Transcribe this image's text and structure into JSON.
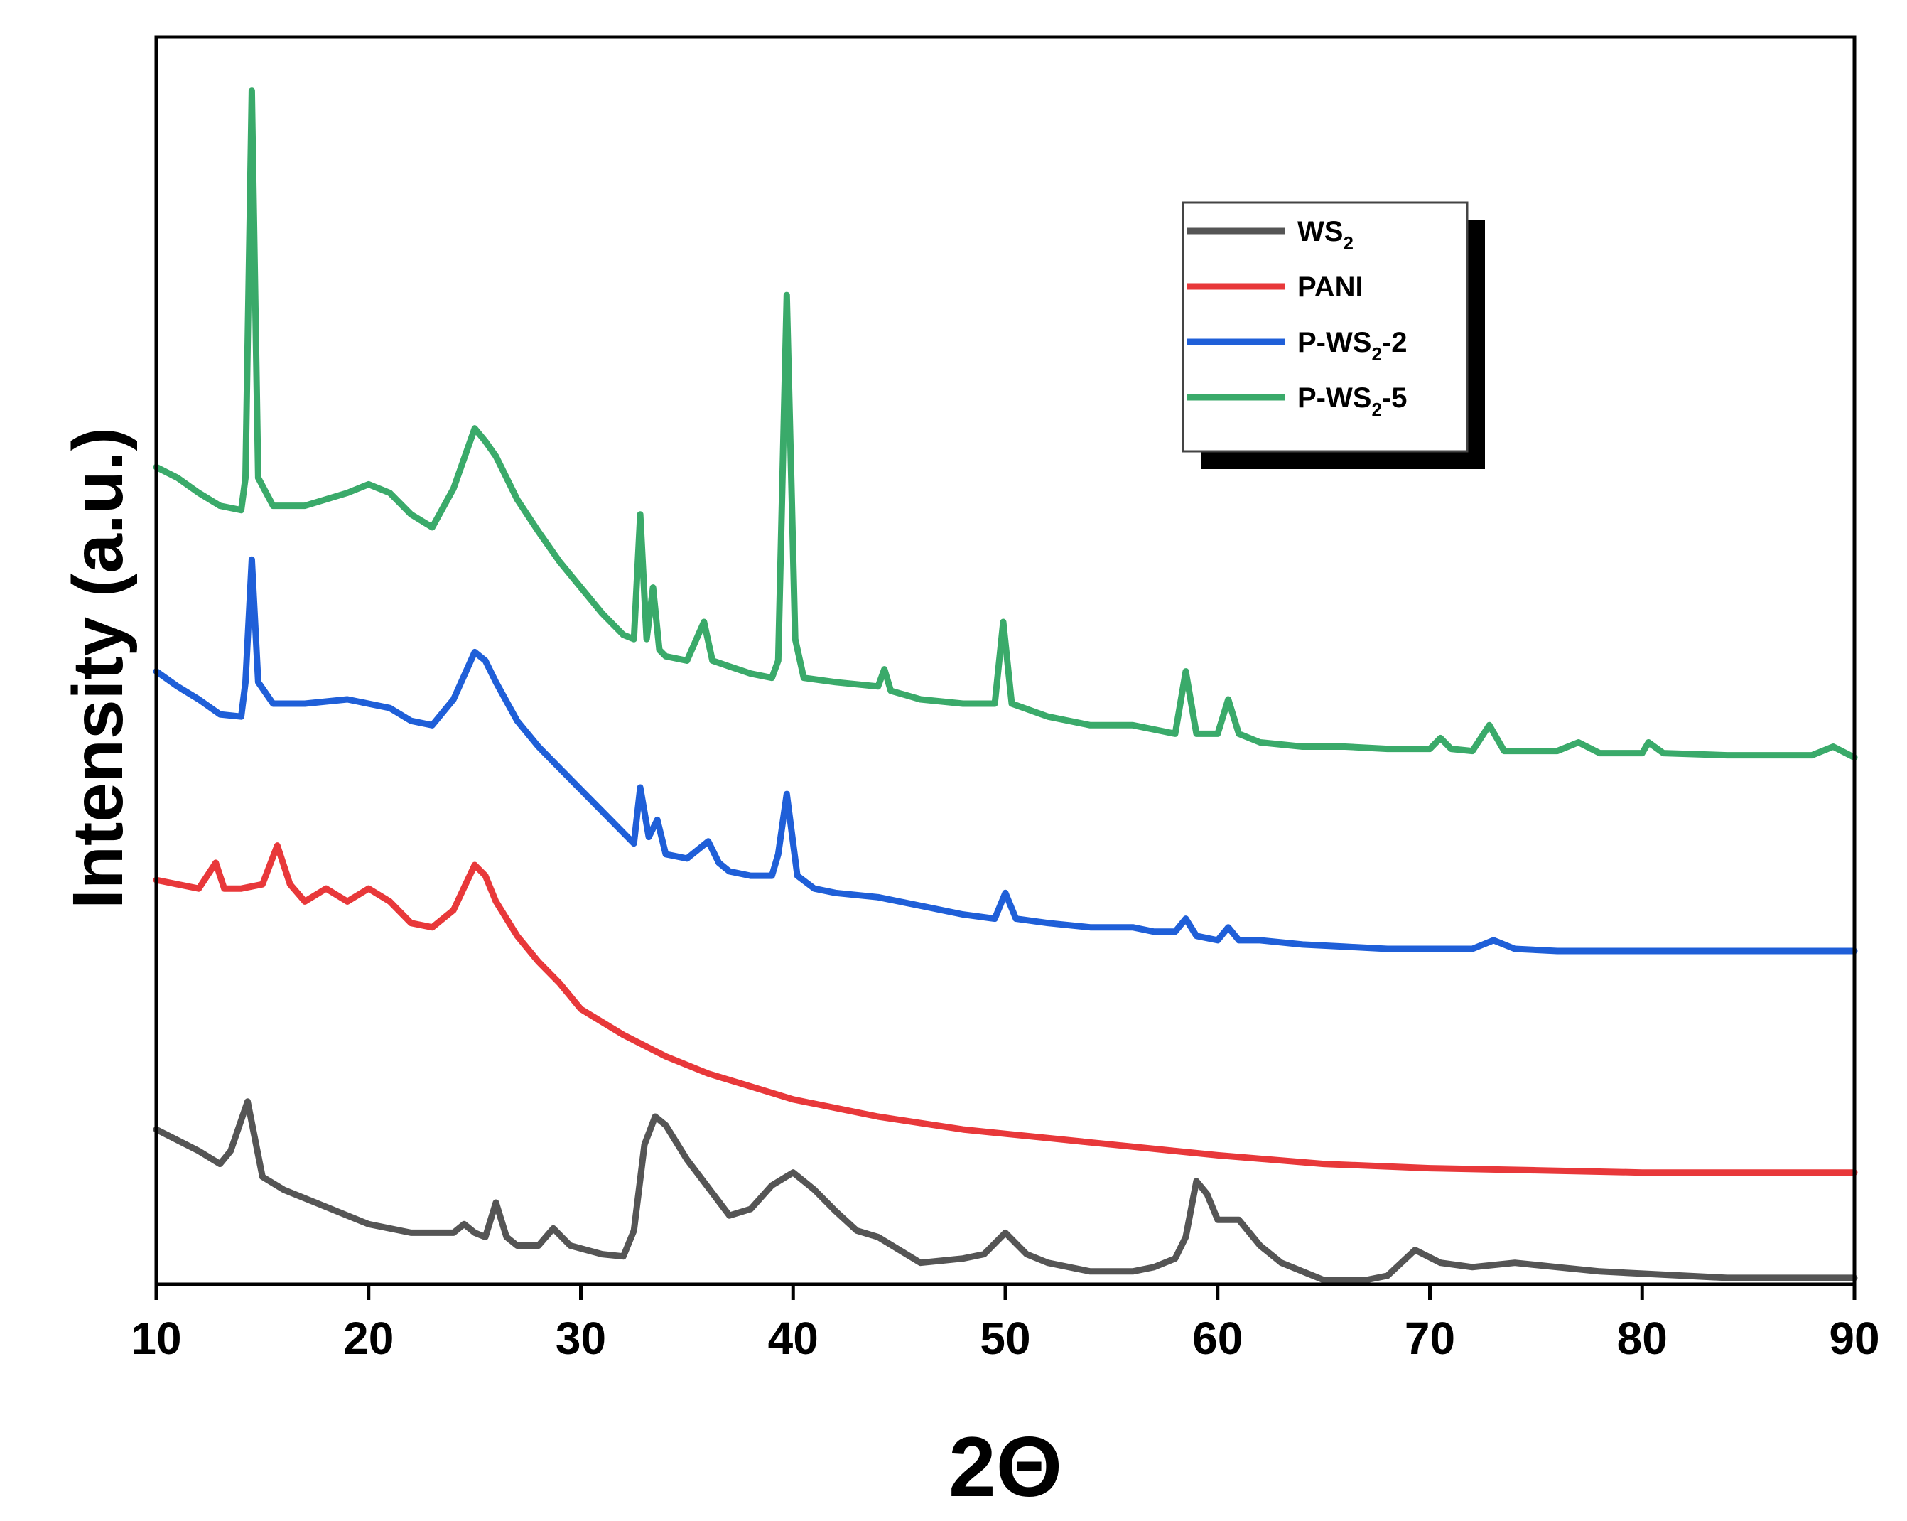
{
  "chart_data": {
    "type": "line",
    "title": "",
    "xlabel": "2Θ",
    "ylabel": "Intensity (a.u.)",
    "xlim": [
      10,
      90
    ],
    "ylim": [
      0,
      5.8
    ],
    "xticks": [
      10,
      20,
      30,
      40,
      50,
      60,
      70,
      80,
      90
    ],
    "yticks_shown": false,
    "legend": {
      "position": "top-right",
      "entries": [
        {
          "base": "WS",
          "sub": "2",
          "suffix": "",
          "color": "#555555"
        },
        {
          "base": "PANI",
          "sub": "",
          "suffix": "",
          "color": "#e8383a"
        },
        {
          "base": "P-WS",
          "sub": "2",
          "suffix": "-2",
          "color": "#1f5fd8"
        },
        {
          "base": "P-WS",
          "sub": "2",
          "suffix": "-5",
          "color": "#3aaa6a"
        }
      ]
    },
    "series": [
      {
        "name": "WS2",
        "color": "#555555",
        "x": [
          10,
          12,
          13,
          13.5,
          14.3,
          15,
          16,
          18,
          20,
          22,
          24,
          24.5,
          25,
          25.5,
          26,
          26.5,
          27,
          28,
          28.7,
          29.5,
          31,
          32,
          32.5,
          33,
          33.5,
          34,
          35,
          36,
          37,
          38,
          39,
          40,
          41,
          42,
          43,
          44,
          46,
          48,
          49,
          50,
          51,
          52,
          54,
          56,
          57,
          58,
          58.5,
          59,
          59.5,
          60,
          61,
          62,
          63,
          65,
          67,
          68,
          69.3,
          70.5,
          72,
          74,
          76,
          78,
          80,
          82,
          84,
          86,
          88,
          90
        ],
        "y": [
          0.72,
          0.62,
          0.56,
          0.62,
          0.85,
          0.5,
          0.44,
          0.36,
          0.28,
          0.24,
          0.24,
          0.28,
          0.24,
          0.22,
          0.38,
          0.22,
          0.18,
          0.18,
          0.26,
          0.18,
          0.14,
          0.13,
          0.25,
          0.65,
          0.78,
          0.74,
          0.58,
          0.45,
          0.32,
          0.35,
          0.46,
          0.52,
          0.44,
          0.34,
          0.25,
          0.22,
          0.1,
          0.12,
          0.14,
          0.24,
          0.14,
          0.1,
          0.06,
          0.06,
          0.08,
          0.12,
          0.22,
          0.48,
          0.42,
          0.3,
          0.3,
          0.18,
          0.1,
          0.02,
          0.02,
          0.04,
          0.16,
          0.1,
          0.08,
          0.1,
          0.08,
          0.06,
          0.05,
          0.04,
          0.03,
          0.03,
          0.03,
          0.03
        ]
      },
      {
        "name": "PANI",
        "color": "#e8383a",
        "x": [
          10,
          11,
          12,
          12.8,
          13.2,
          14,
          15,
          15.7,
          16.3,
          17,
          18,
          19,
          20,
          21,
          22,
          23,
          24,
          25,
          25.5,
          26,
          27,
          28,
          29,
          30,
          32,
          34,
          36,
          38,
          40,
          42,
          44,
          46,
          48,
          50,
          52,
          54,
          56,
          58,
          60,
          65,
          70,
          75,
          80,
          85,
          90
        ],
        "y": [
          1.88,
          1.86,
          1.84,
          1.96,
          1.84,
          1.84,
          1.86,
          2.04,
          1.86,
          1.78,
          1.84,
          1.78,
          1.84,
          1.78,
          1.68,
          1.66,
          1.74,
          1.95,
          1.9,
          1.78,
          1.62,
          1.5,
          1.4,
          1.28,
          1.16,
          1.06,
          0.98,
          0.92,
          0.86,
          0.82,
          0.78,
          0.75,
          0.72,
          0.7,
          0.68,
          0.66,
          0.64,
          0.62,
          0.6,
          0.56,
          0.54,
          0.53,
          0.52,
          0.52,
          0.52
        ]
      },
      {
        "name": "P-WS2-2",
        "color": "#1f5fd8",
        "x": [
          10,
          11,
          12,
          13,
          14,
          14.2,
          14.5,
          14.8,
          15.5,
          17,
          19,
          21,
          22,
          23,
          24,
          25,
          25.5,
          26,
          27,
          28,
          29,
          30,
          31,
          32,
          32.5,
          32.8,
          33.2,
          33.6,
          34,
          35,
          36,
          36.5,
          37,
          38,
          39,
          39.3,
          39.7,
          40.2,
          41,
          42,
          44,
          46,
          48,
          49.5,
          50,
          50.5,
          52,
          54,
          56,
          57,
          58,
          58.5,
          59,
          60,
          60.5,
          61,
          62,
          64,
          66,
          68,
          70,
          72,
          73,
          74,
          76,
          78,
          80,
          82,
          84,
          86,
          88,
          90
        ],
        "y": [
          2.85,
          2.78,
          2.72,
          2.65,
          2.64,
          2.8,
          3.37,
          2.8,
          2.7,
          2.7,
          2.72,
          2.68,
          2.62,
          2.6,
          2.72,
          2.94,
          2.9,
          2.8,
          2.62,
          2.5,
          2.4,
          2.3,
          2.2,
          2.1,
          2.05,
          2.31,
          2.08,
          2.16,
          2.0,
          1.98,
          2.06,
          1.96,
          1.92,
          1.9,
          1.9,
          2.0,
          2.28,
          1.9,
          1.84,
          1.82,
          1.8,
          1.76,
          1.72,
          1.7,
          1.82,
          1.7,
          1.68,
          1.66,
          1.66,
          1.64,
          1.64,
          1.7,
          1.62,
          1.6,
          1.66,
          1.6,
          1.6,
          1.58,
          1.57,
          1.56,
          1.56,
          1.56,
          1.6,
          1.56,
          1.55,
          1.55,
          1.55,
          1.55,
          1.55,
          1.55,
          1.55,
          1.55
        ]
      },
      {
        "name": "P-WS2-5",
        "color": "#3aaa6a",
        "x": [
          10,
          11,
          12,
          13,
          14,
          14.2,
          14.5,
          14.8,
          15.5,
          17,
          19,
          20,
          21,
          22,
          23,
          24,
          25,
          25.5,
          26,
          27,
          28,
          29,
          30,
          31,
          32,
          32.5,
          32.8,
          33.1,
          33.4,
          33.7,
          34,
          35,
          35.8,
          36.2,
          36.8,
          38,
          39,
          39.3,
          39.7,
          40.1,
          40.5,
          42,
          44,
          44.3,
          44.6,
          46,
          48,
          49.5,
          49.9,
          50.3,
          52,
          54,
          56,
          57,
          58,
          58.5,
          59,
          60,
          60.5,
          61,
          62,
          64,
          66,
          68,
          70,
          70.5,
          71,
          72,
          72.8,
          73.5,
          74,
          76,
          77,
          78,
          80,
          80.3,
          81,
          84,
          86,
          88,
          89,
          90
        ],
        "y": [
          3.8,
          3.75,
          3.68,
          3.62,
          3.6,
          3.75,
          5.55,
          3.75,
          3.62,
          3.62,
          3.68,
          3.72,
          3.68,
          3.58,
          3.52,
          3.7,
          3.98,
          3.92,
          3.85,
          3.65,
          3.5,
          3.36,
          3.24,
          3.12,
          3.02,
          3.0,
          3.58,
          3.0,
          3.24,
          2.95,
          2.92,
          2.9,
          3.08,
          2.9,
          2.88,
          2.84,
          2.82,
          2.9,
          4.6,
          3.0,
          2.82,
          2.8,
          2.78,
          2.86,
          2.76,
          2.72,
          2.7,
          2.7,
          3.08,
          2.7,
          2.64,
          2.6,
          2.6,
          2.58,
          2.56,
          2.85,
          2.56,
          2.56,
          2.72,
          2.56,
          2.52,
          2.5,
          2.5,
          2.49,
          2.49,
          2.54,
          2.49,
          2.48,
          2.6,
          2.48,
          2.48,
          2.48,
          2.52,
          2.47,
          2.47,
          2.52,
          2.47,
          2.46,
          2.46,
          2.46,
          2.5,
          2.45
        ]
      }
    ]
  }
}
